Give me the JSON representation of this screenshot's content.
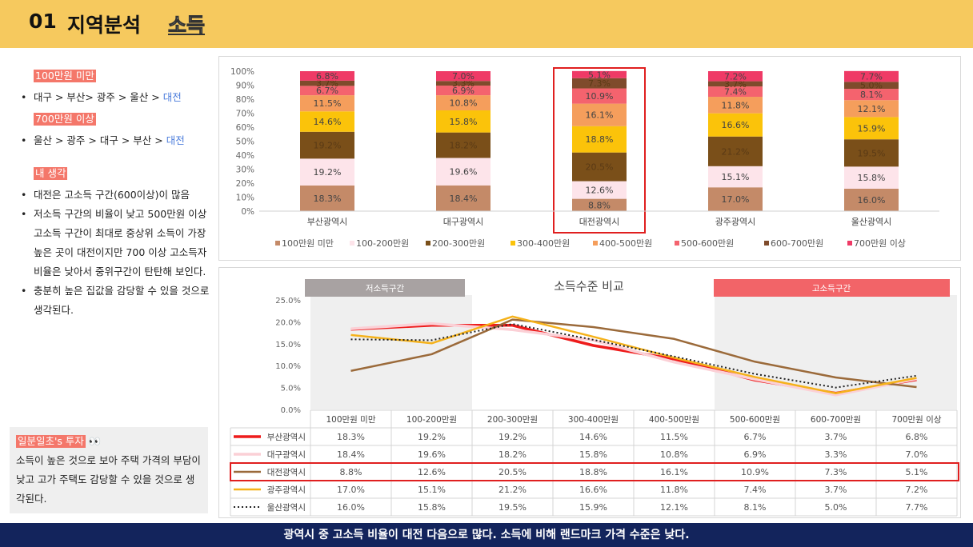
{
  "header": {
    "num": "01",
    "title": "지역분석",
    "subtitle": "소득"
  },
  "left": {
    "tag1": "100만원 미만",
    "rank1_prefix": "대구 > 부산> 광주 > 울산 > ",
    "rank1_highlight": "대전",
    "tag2": "700만원 이상",
    "rank2_prefix": "울산 > 광주 > 대구 > 부산 > ",
    "rank2_highlight": "대전",
    "tag3": "내 생각",
    "thought1": "대전은 고소득 구간(600이상)이 많음",
    "thought2": "저소득 구간의 비율이 낮고 500만원 이상 고소득 구간이 최대로 중상위 소득이 가장 높은 곳이 대전이지만 700 이상 고소득자 비율은 낮아서 중위구간이 탄탄해 보인다.",
    "thought3": "충분히 높은 집값을 감당할 수 있을 것으로 생각된다."
  },
  "note": {
    "tag": "일분일초's 투자",
    "emoji": "👀",
    "text": "소득이 높은 것으로 보아 주택 가격의 부담이 낮고  고가 주택도 감당할 수 있을 것으로 생각된다."
  },
  "footer": "광역시 중 고소득 비율이 대전 다음으로 많다.  소득에 비해 랜드마크 가격 수준은 낮다.",
  "chart_data": [
    {
      "type": "bar",
      "stacked": true,
      "percent": true,
      "title": "",
      "categories": [
        "부산광역시",
        "대구광역시",
        "대전광역시",
        "광주광역시",
        "울산광역시"
      ],
      "y_ticks": [
        "0%",
        "10%",
        "20%",
        "30%",
        "40%",
        "50%",
        "60%",
        "70%",
        "80%",
        "90%",
        "100%"
      ],
      "ylim": [
        0,
        100
      ],
      "legend_position": "bottom",
      "highlight_category": "대전광역시",
      "series": [
        {
          "name": "100만원 미만",
          "color": "#c48a68",
          "values": [
            18.3,
            18.4,
            8.8,
            17.0,
            16.0
          ],
          "labels": [
            "18.3%",
            "18.4%",
            "8.8%",
            "17.0%",
            "16.0%"
          ]
        },
        {
          "name": "100-200만원",
          "color": "#fde4ea",
          "values": [
            19.2,
            19.6,
            12.6,
            15.1,
            15.8
          ],
          "labels": [
            "19.2%",
            "19.6%",
            "12.6%",
            "15.1%",
            "15.8%"
          ]
        },
        {
          "name": "200-300만원",
          "color": "#7a4f19",
          "values": [
            19.2,
            18.2,
            20.5,
            21.2,
            19.5
          ],
          "labels": [
            "19.2%",
            "18.2%",
            "20.5%",
            "21.2%",
            "19.5%"
          ]
        },
        {
          "name": "300-400만원",
          "color": "#fbc30a",
          "values": [
            14.6,
            15.8,
            18.8,
            16.6,
            15.9
          ],
          "labels": [
            "14.6%",
            "15.8%",
            "18.8%",
            "16.6%",
            "15.9%"
          ]
        },
        {
          "name": "400-500만원",
          "color": "#f59e5c",
          "values": [
            11.5,
            10.8,
            16.1,
            11.8,
            12.1
          ],
          "labels": [
            "11.5%",
            "10.8%",
            "16.1%",
            "11.8%",
            "12.1%"
          ]
        },
        {
          "name": "500-600만원",
          "color": "#f4636e",
          "values": [
            6.7,
            6.9,
            10.9,
            7.4,
            8.1
          ],
          "labels": [
            "6.7%",
            "6.9%",
            "10.9%",
            "7.4%",
            "8.1%"
          ]
        },
        {
          "name": "600-700만원",
          "color": "#7f4b2c",
          "values": [
            3.7,
            3.3,
            7.3,
            3.7,
            5.0
          ],
          "labels": [
            "3.7%",
            "3.3%",
            "7.3%",
            "3.7%",
            "5.0%"
          ]
        },
        {
          "name": "700만원 이상",
          "color": "#ef3a66",
          "values": [
            6.8,
            7.0,
            5.1,
            7.2,
            7.7
          ],
          "labels": [
            "6.8%",
            "7.0%",
            "5.1%",
            "7.2%",
            "7.7%"
          ]
        }
      ]
    },
    {
      "type": "line",
      "title": "소득수준 비교",
      "categories": [
        "100만원 미만",
        "100-200만원",
        "200-300만원",
        "300-400만원",
        "400-500만원",
        "500-600만원",
        "600-700만원",
        "700만원 이상"
      ],
      "y_ticks": [
        "0.0%",
        "5.0%",
        "10.0%",
        "15.0%",
        "20.0%",
        "25.0%"
      ],
      "ylim": [
        0,
        25
      ],
      "band_low_label": "저소득구간",
      "band_high_label": "고소득구간",
      "highlight_series": "대전광역시",
      "series": [
        {
          "name": "부산광역시",
          "color": "#ee1c1c",
          "style": "thick",
          "values": [
            18.3,
            19.2,
            19.2,
            14.6,
            11.5,
            6.7,
            3.7,
            6.8
          ],
          "labels": [
            "18.3%",
            "19.2%",
            "19.2%",
            "14.6%",
            "11.5%",
            "6.7%",
            "3.7%",
            "6.8%"
          ]
        },
        {
          "name": "대구광역시",
          "color": "#fbd0d6",
          "style": "thick",
          "values": [
            18.4,
            19.6,
            18.2,
            15.8,
            10.8,
            6.9,
            3.3,
            7.0
          ],
          "labels": [
            "18.4%",
            "19.6%",
            "18.2%",
            "15.8%",
            "10.8%",
            "6.9%",
            "3.3%",
            "7.0%"
          ]
        },
        {
          "name": "대전광역시",
          "color": "#9b6a3a",
          "style": "solid",
          "values": [
            8.8,
            12.6,
            20.5,
            18.8,
            16.1,
            10.9,
            7.3,
            5.1
          ],
          "labels": [
            "8.8%",
            "12.6%",
            "20.5%",
            "18.8%",
            "16.1%",
            "10.9%",
            "7.3%",
            "5.1%"
          ]
        },
        {
          "name": "광주광역시",
          "color": "#f5b21b",
          "style": "solid",
          "values": [
            17.0,
            15.1,
            21.2,
            16.6,
            11.8,
            7.4,
            3.7,
            7.2
          ],
          "labels": [
            "17.0%",
            "15.1%",
            "21.2%",
            "16.6%",
            "11.8%",
            "7.4%",
            "3.7%",
            "7.2%"
          ]
        },
        {
          "name": "울산광역시",
          "color": "#222222",
          "style": "dotted",
          "values": [
            16.0,
            15.8,
            19.5,
            15.9,
            12.1,
            8.1,
            5.0,
            7.7
          ],
          "labels": [
            "16.0%",
            "15.8%",
            "19.5%",
            "15.9%",
            "12.1%",
            "8.1%",
            "5.0%",
            "7.7%"
          ]
        }
      ]
    }
  ]
}
